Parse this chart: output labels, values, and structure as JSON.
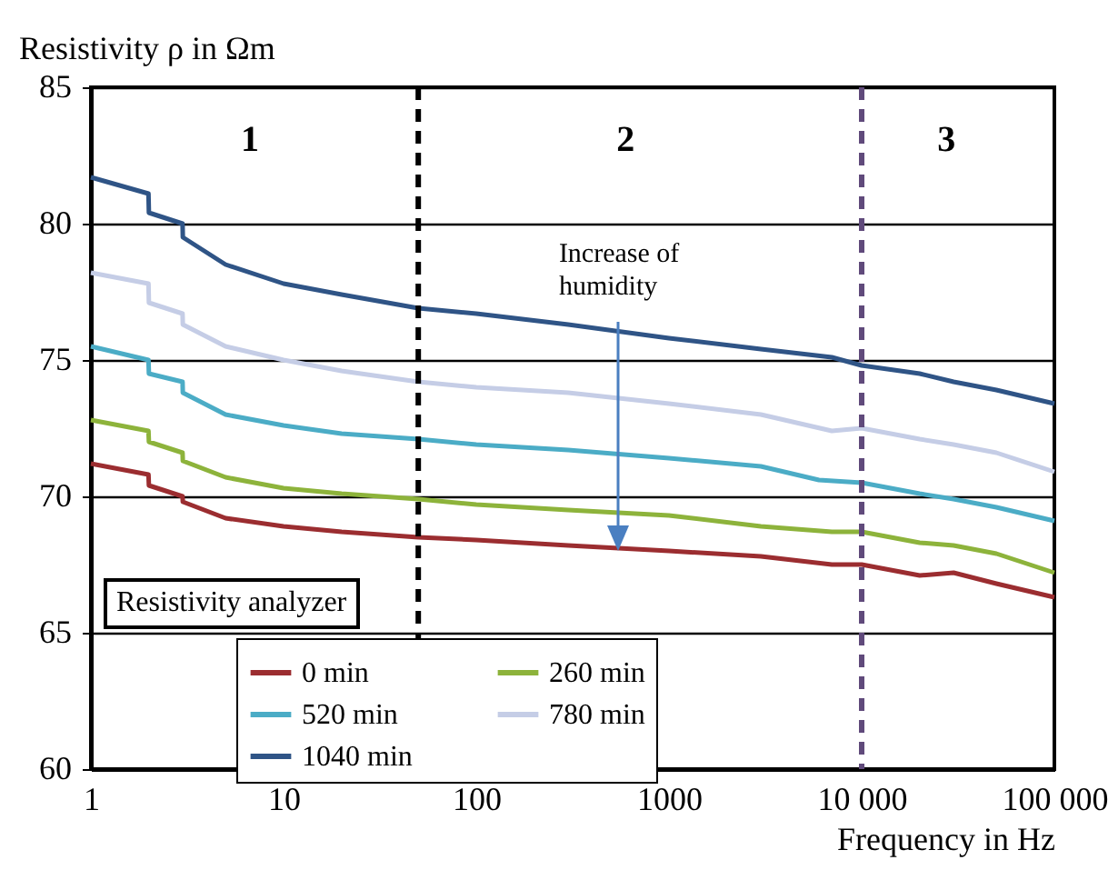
{
  "chart_data": {
    "type": "line",
    "xlabel": "Frequency in Hz",
    "ylabel": "Resistivity ρ in Ωm",
    "log": "x",
    "xlim": [
      1,
      100000
    ],
    "xticks": [
      1,
      10,
      100,
      1000,
      {
        "value": 10000,
        "label": "10 000"
      },
      {
        "value": 100000,
        "label": "100 000"
      }
    ],
    "ylim": [
      60,
      85
    ],
    "yticks": [
      60,
      65,
      70,
      75,
      80,
      85
    ],
    "grid": "y",
    "legend": "bottom",
    "marker": "none",
    "line_style": "solid",
    "series": [
      {
        "name": "0 min",
        "color": "#9b2d30",
        "x": [
          1,
          1.99,
          2,
          2.99,
          3,
          5,
          10,
          20,
          50,
          100,
          300,
          1000,
          3000,
          7000,
          10000,
          20000,
          30000,
          50000,
          100000
        ],
        "values": [
          71.2,
          70.8,
          70.4,
          70.0,
          69.8,
          69.2,
          68.9,
          68.7,
          68.5,
          68.4,
          68.2,
          68.0,
          67.8,
          67.5,
          67.5,
          67.1,
          67.2,
          66.8,
          66.3
        ]
      },
      {
        "name": "260 min",
        "color": "#8db33b",
        "x": [
          1,
          1.99,
          2,
          2.99,
          3,
          5,
          10,
          20,
          50,
          100,
          300,
          1000,
          3000,
          7000,
          10000,
          20000,
          30000,
          50000,
          100000
        ],
        "values": [
          72.8,
          72.4,
          72.0,
          71.6,
          71.3,
          70.7,
          70.3,
          70.1,
          69.9,
          69.7,
          69.5,
          69.3,
          68.9,
          68.7,
          68.7,
          68.3,
          68.2,
          67.9,
          67.2
        ]
      },
      {
        "name": "520 min",
        "color": "#4bacc6",
        "x": [
          1,
          1.99,
          2,
          2.99,
          3,
          5,
          10,
          20,
          50,
          100,
          300,
          1000,
          3000,
          6000,
          10000,
          20000,
          30000,
          50000,
          100000
        ],
        "values": [
          75.5,
          75.0,
          74.5,
          74.2,
          73.8,
          73.0,
          72.6,
          72.3,
          72.1,
          71.9,
          71.7,
          71.4,
          71.1,
          70.6,
          70.5,
          70.1,
          69.9,
          69.6,
          69.1
        ]
      },
      {
        "name": "780 min",
        "color": "#c5cde6",
        "x": [
          1,
          1.99,
          2,
          2.99,
          3,
          5,
          10,
          20,
          50,
          100,
          300,
          1000,
          3000,
          7000,
          10000,
          20000,
          30000,
          50000,
          100000
        ],
        "values": [
          78.2,
          77.8,
          77.1,
          76.7,
          76.3,
          75.5,
          75.0,
          74.6,
          74.2,
          74.0,
          73.8,
          73.4,
          73.0,
          72.4,
          72.5,
          72.1,
          71.9,
          71.6,
          70.9
        ]
      },
      {
        "name": "1040 min",
        "color": "#2f5486",
        "x": [
          1,
          1.99,
          2,
          2.99,
          3,
          5,
          10,
          20,
          50,
          100,
          300,
          1000,
          3000,
          7000,
          10000,
          20000,
          30000,
          50000,
          100000
        ],
        "values": [
          81.7,
          81.1,
          80.4,
          80.0,
          79.5,
          78.5,
          77.8,
          77.4,
          76.9,
          76.7,
          76.3,
          75.8,
          75.4,
          75.1,
          74.8,
          74.5,
          74.2,
          73.9,
          73.4
        ]
      }
    ],
    "ref_lines": [
      {
        "axis": "x",
        "value": 50,
        "color": "#000000",
        "line_style": "dashed"
      },
      {
        "axis": "x",
        "value": 10000,
        "color": "#604a7b",
        "line_style": "dashed"
      }
    ],
    "annotations": [
      "1",
      "2",
      "3",
      "Increase of humidity",
      "Resistivity analyzer"
    ]
  }
}
